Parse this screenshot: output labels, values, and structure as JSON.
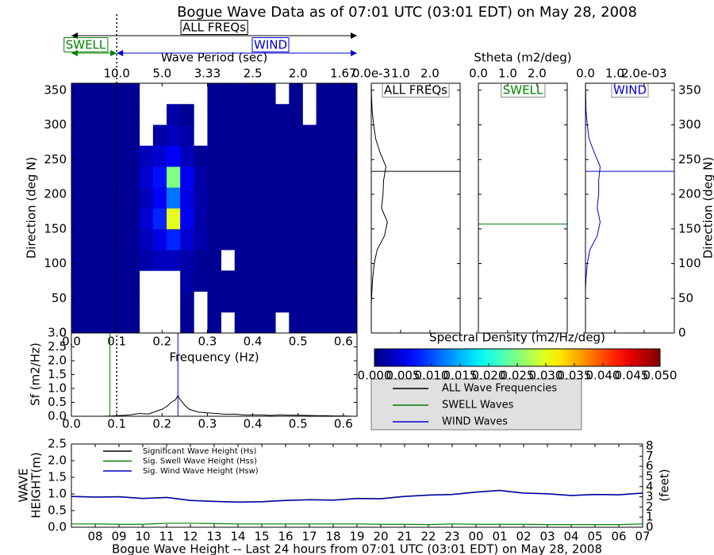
{
  "chart_data": [
    {
      "type": "heatmap",
      "title": "Bogue Wave Data as of 07:01 UTC (03:01 EDT) on May 28, 2008",
      "xlabel": "Frequency (Hz)",
      "x2label": "Wave Period (sec)",
      "ylabel": "Direction (deg N)",
      "annotations": [
        {
          "text": "ALL FREQs",
          "color": "#000000"
        },
        {
          "text": "SWELL",
          "color": "#008000"
        },
        {
          "text": "WIND",
          "color": "#0000cc"
        }
      ],
      "xlim": [
        0,
        0.63
      ],
      "xticks": [
        {
          "value": 0,
          "label": "0.0"
        },
        0.1,
        0.2,
        0.3,
        0.4,
        0.5,
        0.6
      ],
      "x2ticks": [
        {
          "value": 0.1,
          "label": "10.0"
        },
        {
          "value": 0.2,
          "label": "5.0"
        },
        {
          "value": 0.3,
          "label": "3.33"
        },
        {
          "value": 0.4,
          "label": "2.5"
        },
        {
          "value": 0.5,
          "label": "2.0"
        },
        {
          "value": 0.6,
          "label": "1.67"
        }
      ],
      "ylim": [
        0,
        360
      ],
      "yticks": [
        0,
        50,
        100,
        150,
        200,
        250,
        300,
        350
      ],
      "colormap": "jet",
      "zlim": [
        0,
        0.05
      ],
      "x_edges": [
        0,
        0.03,
        0.06,
        0.09,
        0.12,
        0.15,
        0.18,
        0.21,
        0.24,
        0.27,
        0.3,
        0.33,
        0.36,
        0.39,
        0.42,
        0.45,
        0.48,
        0.51,
        0.54,
        0.57,
        0.6,
        0.63
      ],
      "y_edges": [
        0,
        30,
        60,
        90,
        120,
        150,
        180,
        210,
        240,
        270,
        300,
        330,
        360
      ],
      "z": [
        [
          0.001,
          0.001,
          0.001,
          0.001,
          0.001,
          null,
          null,
          null,
          0.001,
          null,
          0.001,
          null,
          0.001,
          0.001,
          0.001,
          null,
          0.001,
          0.001,
          0.001,
          0.001,
          0.001
        ],
        [
          0.001,
          0.001,
          0.001,
          0.001,
          0.001,
          null,
          null,
          null,
          0.001,
          null,
          0.001,
          0.001,
          0.001,
          0.001,
          0.001,
          0.001,
          0.001,
          0.001,
          0.001,
          0.001,
          0.001
        ],
        [
          0.001,
          0.001,
          0.001,
          0.001,
          0.001,
          null,
          null,
          null,
          0.002,
          0.001,
          0.001,
          0.001,
          0.001,
          0.001,
          0.001,
          0.001,
          0.001,
          0.001,
          0.001,
          0.001,
          0.001
        ],
        [
          0.001,
          0.001,
          0.001,
          0.001,
          0.001,
          0.002,
          0.003,
          0.003,
          0.002,
          0.001,
          0.001,
          null,
          0.001,
          0.001,
          0.001,
          0.001,
          0.001,
          0.001,
          0.001,
          0.001,
          0.001
        ],
        [
          0.001,
          0.001,
          0.001,
          0.001,
          0.001,
          0.003,
          0.005,
          0.008,
          0.004,
          0.002,
          0.001,
          0.001,
          0.001,
          0.001,
          0.001,
          0.001,
          0.001,
          0.001,
          0.001,
          0.001,
          0.001
        ],
        [
          0.001,
          0.001,
          0.001,
          0.001,
          0.001,
          0.004,
          0.008,
          0.03,
          0.006,
          0.002,
          0.001,
          0.001,
          0.001,
          0.001,
          0.001,
          0.001,
          0.001,
          0.001,
          0.001,
          0.001,
          0.001
        ],
        [
          0.001,
          0.001,
          0.001,
          0.001,
          0.001,
          0.003,
          0.006,
          0.012,
          0.005,
          0.002,
          0.001,
          0.001,
          0.001,
          0.001,
          0.001,
          0.001,
          0.001,
          0.001,
          0.001,
          0.001,
          0.001
        ],
        [
          0.001,
          0.001,
          0.001,
          0.001,
          0.001,
          0.004,
          0.007,
          0.025,
          0.006,
          0.002,
          0.001,
          0.001,
          0.001,
          0.001,
          0.001,
          0.001,
          0.001,
          0.001,
          0.001,
          0.001,
          0.001
        ],
        [
          0.001,
          0.001,
          0.001,
          0.001,
          0.001,
          0.003,
          0.004,
          0.006,
          0.003,
          0.001,
          0.001,
          0.001,
          0.001,
          0.001,
          0.001,
          0.001,
          0.001,
          0.001,
          0.001,
          0.001,
          0.001
        ],
        [
          0.001,
          0.001,
          0.001,
          0.001,
          0.001,
          null,
          0.002,
          0.003,
          0.002,
          null,
          0.001,
          0.001,
          0.001,
          0.001,
          0.001,
          0.001,
          0.001,
          0.001,
          0.001,
          0.001,
          0.001
        ],
        [
          0.001,
          0.001,
          0.001,
          0.001,
          0.001,
          null,
          null,
          0.002,
          0.001,
          null,
          0.001,
          0.001,
          0.001,
          0.001,
          0.001,
          0.001,
          0.001,
          null,
          0.001,
          0.001,
          0.001
        ],
        [
          0.001,
          0.001,
          0.001,
          0.001,
          0.001,
          null,
          null,
          null,
          null,
          null,
          0.001,
          0.001,
          0.001,
          0.001,
          0.001,
          null,
          0.001,
          null,
          0.001,
          0.001,
          0.001
        ]
      ]
    },
    {
      "type": "line",
      "ylabel": "Sf (m2/Hz)",
      "xlim": [
        0,
        0.63
      ],
      "xticks": [
        {
          "value": 0,
          "label": "0.0"
        },
        0.1,
        0.2,
        0.3,
        0.4,
        0.5,
        0.6
      ],
      "ylim": [
        0,
        3
      ],
      "yticks": [
        {
          "value": 0,
          "label": "0.0"
        },
        0.5,
        {
          "value": 1,
          "label": "1.0"
        },
        1.5,
        {
          "value": 2,
          "label": "2.0"
        },
        2.5,
        {
          "value": 3,
          "label": "3.0"
        }
      ],
      "x": [
        0.03,
        0.05,
        0.07,
        0.09,
        0.11,
        0.13,
        0.15,
        0.17,
        0.19,
        0.2,
        0.21,
        0.22,
        0.23,
        0.235,
        0.24,
        0.25,
        0.26,
        0.28,
        0.3,
        0.32,
        0.34,
        0.36,
        0.38,
        0.4,
        0.42,
        0.44,
        0.46,
        0.48,
        0.5,
        0.52,
        0.54,
        0.56,
        0.58,
        0.6,
        0.62
      ],
      "values": [
        0,
        0,
        0,
        0.01,
        0.03,
        0.05,
        0.1,
        0.08,
        0.2,
        0.25,
        0.35,
        0.5,
        0.6,
        0.75,
        0.6,
        0.4,
        0.25,
        0.15,
        0.12,
        0.1,
        0.07,
        0.08,
        0.05,
        0.05,
        0.05,
        0.03,
        0.05,
        0.04,
        0.04,
        0.03,
        0.02,
        0.02,
        0.01,
        0.01,
        0
      ],
      "color": "#000000",
      "swell_frequency": 0.085,
      "separation_frequency": 0.1,
      "peak_frequency": 0.235
    },
    {
      "type": "line",
      "orientation": "horizontal",
      "xlabel": "Stheta (m2/deg)",
      "ylabel": "Direction (deg N)",
      "ylim": [
        0,
        360
      ],
      "yticks": [
        0,
        50,
        100,
        150,
        200,
        250,
        300,
        350
      ],
      "y": [
        0,
        20,
        40,
        60,
        80,
        100,
        120,
        140,
        160,
        180,
        200,
        220,
        240,
        260,
        280,
        300,
        320,
        340,
        360
      ],
      "series": [
        {
          "title": "ALL FREQs",
          "name": "ALL Wave Frequencies",
          "color": "#000000",
          "xlim": [
            0,
            3.03
          ],
          "xticks": [
            {
              "value": 0,
              "label": "0.0e-3"
            },
            {
              "value": 1,
              "label": "1.0"
            },
            {
              "value": 2,
              "label": "2.0"
            }
          ],
          "values": [
            0,
            0,
            0,
            0.02,
            0.05,
            0.1,
            0.2,
            0.45,
            0.55,
            0.35,
            0.4,
            0.42,
            0.5,
            0.3,
            0.15,
            0.08,
            0.03,
            0.01,
            0
          ],
          "peak_direction": 233
        },
        {
          "title": "SWELL",
          "name": "SWELL Waves",
          "color": "#008000",
          "xlim": [
            0,
            3.03
          ],
          "xticks": [
            {
              "value": 0,
              "label": "0.0"
            },
            {
              "value": 1,
              "label": "1.0"
            },
            {
              "value": 2,
              "label": "2.0"
            }
          ],
          "values": [
            0,
            0,
            0,
            0,
            0,
            0,
            0,
            0,
            0,
            0,
            0,
            0,
            0,
            0,
            0,
            0,
            0,
            0,
            0
          ],
          "peak_direction": 157
        },
        {
          "title": "WIND",
          "name": "WIND Waves",
          "color": "#0000cc",
          "xlim": [
            0,
            3.03
          ],
          "xticks": [
            {
              "value": 0,
              "label": "0.0"
            },
            {
              "value": 1,
              "label": "1.0"
            },
            {
              "value": 2,
              "label": "2.0e-03"
            }
          ],
          "values": [
            0,
            0,
            0,
            0,
            0.02,
            0.06,
            0.15,
            0.4,
            0.5,
            0.4,
            0.45,
            0.45,
            0.5,
            0.3,
            0.12,
            0.06,
            0.02,
            0.01,
            0
          ],
          "peak_direction": 233
        }
      ]
    },
    {
      "type": "colorbar",
      "label": "Spectral Density (m2/Hz/deg)",
      "colormap": "jet",
      "lim": [
        0,
        0.05
      ],
      "ticks": [
        {
          "value": 0,
          "label": "0.000"
        },
        {
          "value": 0.005,
          "label": "0.005"
        },
        {
          "value": 0.01,
          "label": "0.010"
        },
        {
          "value": 0.015,
          "label": "0.015"
        },
        {
          "value": 0.02,
          "label": "0.020"
        },
        {
          "value": 0.025,
          "label": "0.025"
        },
        {
          "value": 0.03,
          "label": "0.030"
        },
        {
          "value": 0.035,
          "label": "0.035"
        },
        {
          "value": 0.04,
          "label": "0.040"
        },
        {
          "value": 0.045,
          "label": "0.045"
        },
        {
          "value": 0.05,
          "label": "0.050"
        }
      ]
    },
    {
      "type": "line",
      "title": "Bogue Wave Height -- Last 24 hours from 07:01 UTC (03:01 EDT) on May 28, 2008",
      "ylabel": [
        "WAVE",
        "HEIGHT(m)"
      ],
      "y2label": "(feet)",
      "x": [
        0,
        1,
        2,
        3,
        4,
        5,
        6,
        7,
        8,
        9,
        10,
        11,
        12,
        13,
        14,
        15,
        16,
        17,
        18,
        19,
        20,
        21,
        22,
        23,
        24
      ],
      "xlim": [
        0,
        24
      ],
      "xticks": [
        {
          "value": 1,
          "label": "08"
        },
        {
          "value": 2,
          "label": "09"
        },
        {
          "value": 3,
          "label": "10"
        },
        {
          "value": 4,
          "label": "11"
        },
        {
          "value": 5,
          "label": "12"
        },
        {
          "value": 6,
          "label": "13"
        },
        {
          "value": 7,
          "label": "14"
        },
        {
          "value": 8,
          "label": "15"
        },
        {
          "value": 9,
          "label": "16"
        },
        {
          "value": 10,
          "label": "17"
        },
        {
          "value": 11,
          "label": "18"
        },
        {
          "value": 12,
          "label": "19"
        },
        {
          "value": 13,
          "label": "20"
        },
        {
          "value": 14,
          "label": "21"
        },
        {
          "value": 15,
          "label": "22"
        },
        {
          "value": 16,
          "label": "23"
        },
        {
          "value": 17,
          "label": "00"
        },
        {
          "value": 18,
          "label": "01"
        },
        {
          "value": 19,
          "label": "02"
        },
        {
          "value": 20,
          "label": "03"
        },
        {
          "value": 21,
          "label": "04"
        },
        {
          "value": 22,
          "label": "05"
        },
        {
          "value": 23,
          "label": "06"
        },
        {
          "value": 24,
          "label": "07"
        }
      ],
      "ylim": [
        0,
        2.5
      ],
      "yticks": [
        {
          "value": 0,
          "label": "0.0"
        },
        0.5,
        {
          "value": 1,
          "label": "1.0"
        },
        1.5,
        {
          "value": 2,
          "label": "2.0"
        },
        2.5
      ],
      "y2lim": [
        0,
        8.2
      ],
      "y2ticks": [
        0,
        1,
        2,
        3,
        4,
        5,
        6,
        7,
        8
      ],
      "series": [
        {
          "name": "Significant Wave Height (Hs)",
          "color": "#000000",
          "values": [
            0.93,
            0.91,
            0.92,
            0.87,
            0.9,
            0.81,
            0.78,
            0.76,
            0.77,
            0.81,
            0.83,
            0.82,
            0.87,
            0.86,
            0.93,
            0.97,
            0.99,
            1.06,
            1.11,
            1.03,
            1.01,
            0.96,
            0.99,
            0.98,
            1.03
          ]
        },
        {
          "name": "Sig. Swell Wave Height (Hss)",
          "color": "#008000",
          "values": [
            0.1,
            0.1,
            0.09,
            0.09,
            0.12,
            0.12,
            0.11,
            0.1,
            0.1,
            0.1,
            0.1,
            0.1,
            0.1,
            0.09,
            0.09,
            0.08,
            0.1,
            0.09,
            0.09,
            0.09,
            0.08,
            0.08,
            0.08,
            0.08,
            0.1
          ]
        },
        {
          "name": "Sig. Wind Wave Height (Hsw)",
          "color": "#0000cc",
          "values": [
            0.92,
            0.9,
            0.91,
            0.86,
            0.89,
            0.8,
            0.77,
            0.75,
            0.76,
            0.8,
            0.82,
            0.81,
            0.86,
            0.85,
            0.92,
            0.96,
            0.98,
            1.05,
            1.1,
            1.02,
            1.0,
            0.95,
            0.98,
            0.97,
            1.02
          ]
        }
      ]
    }
  ]
}
